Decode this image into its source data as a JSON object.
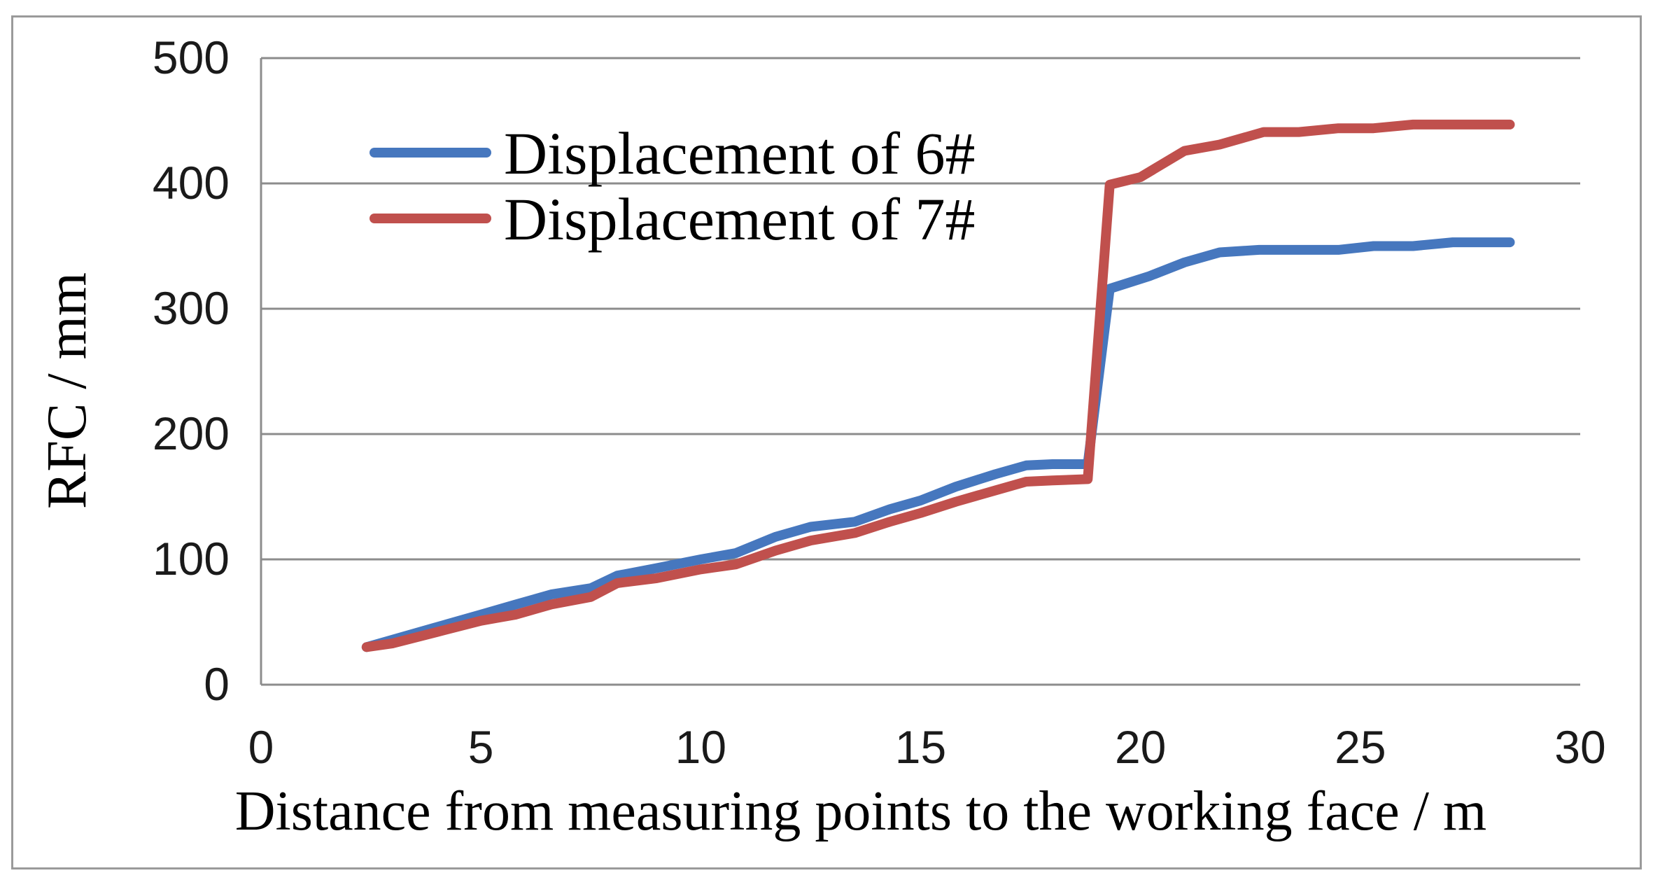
{
  "chart_data": {
    "type": "line",
    "xlabel": "Distance from measuring points to the working face / m",
    "ylabel": "RFC / mm",
    "xlim": [
      0,
      30
    ],
    "ylim": [
      0,
      500
    ],
    "xticks": [
      "0",
      "5",
      "10",
      "15",
      "20",
      "25",
      "30"
    ],
    "yticks": [
      "0",
      "100",
      "200",
      "300",
      "400",
      "500"
    ],
    "grid": "horizontal",
    "legend_position": "top-left",
    "series": [
      {
        "name": "Displacement of 6#",
        "color": "#4677be",
        "x": [
          2.4,
          3.0,
          4.0,
          5.0,
          5.8,
          6.6,
          7.5,
          8.1,
          9.0,
          10.0,
          10.8,
          11.7,
          12.5,
          13.5,
          14.3,
          15.0,
          15.8,
          16.7,
          17.4,
          18.0,
          18.8,
          19.3,
          20.2,
          21.0,
          21.8,
          22.7,
          23.6,
          24.5,
          25.3,
          26.2,
          27.1,
          28.4
        ],
        "y": [
          30,
          36,
          46,
          56,
          64,
          72,
          77,
          87,
          93,
          100,
          105,
          118,
          126,
          130,
          140,
          147,
          158,
          168,
          175,
          176,
          176,
          316,
          326,
          337,
          345,
          347,
          347,
          347,
          350,
          350,
          353,
          353
        ]
      },
      {
        "name": "Displacement of 7#",
        "color": "#c0504d",
        "x": [
          2.4,
          3.0,
          4.0,
          5.0,
          5.8,
          6.6,
          7.5,
          8.1,
          9.0,
          10.0,
          10.8,
          11.7,
          12.5,
          13.5,
          14.3,
          15.0,
          15.8,
          16.7,
          17.4,
          18.0,
          18.8,
          19.3,
          20.0,
          21.0,
          21.8,
          22.8,
          23.6,
          24.5,
          25.3,
          26.2,
          27.1,
          28.4
        ],
        "y": [
          30,
          33,
          42,
          51,
          56,
          64,
          70,
          81,
          85,
          92,
          96,
          107,
          115,
          121,
          130,
          137,
          146,
          155,
          162,
          163,
          164,
          399,
          405,
          426,
          431,
          441,
          441,
          444,
          444,
          447,
          447,
          447
        ]
      }
    ]
  }
}
